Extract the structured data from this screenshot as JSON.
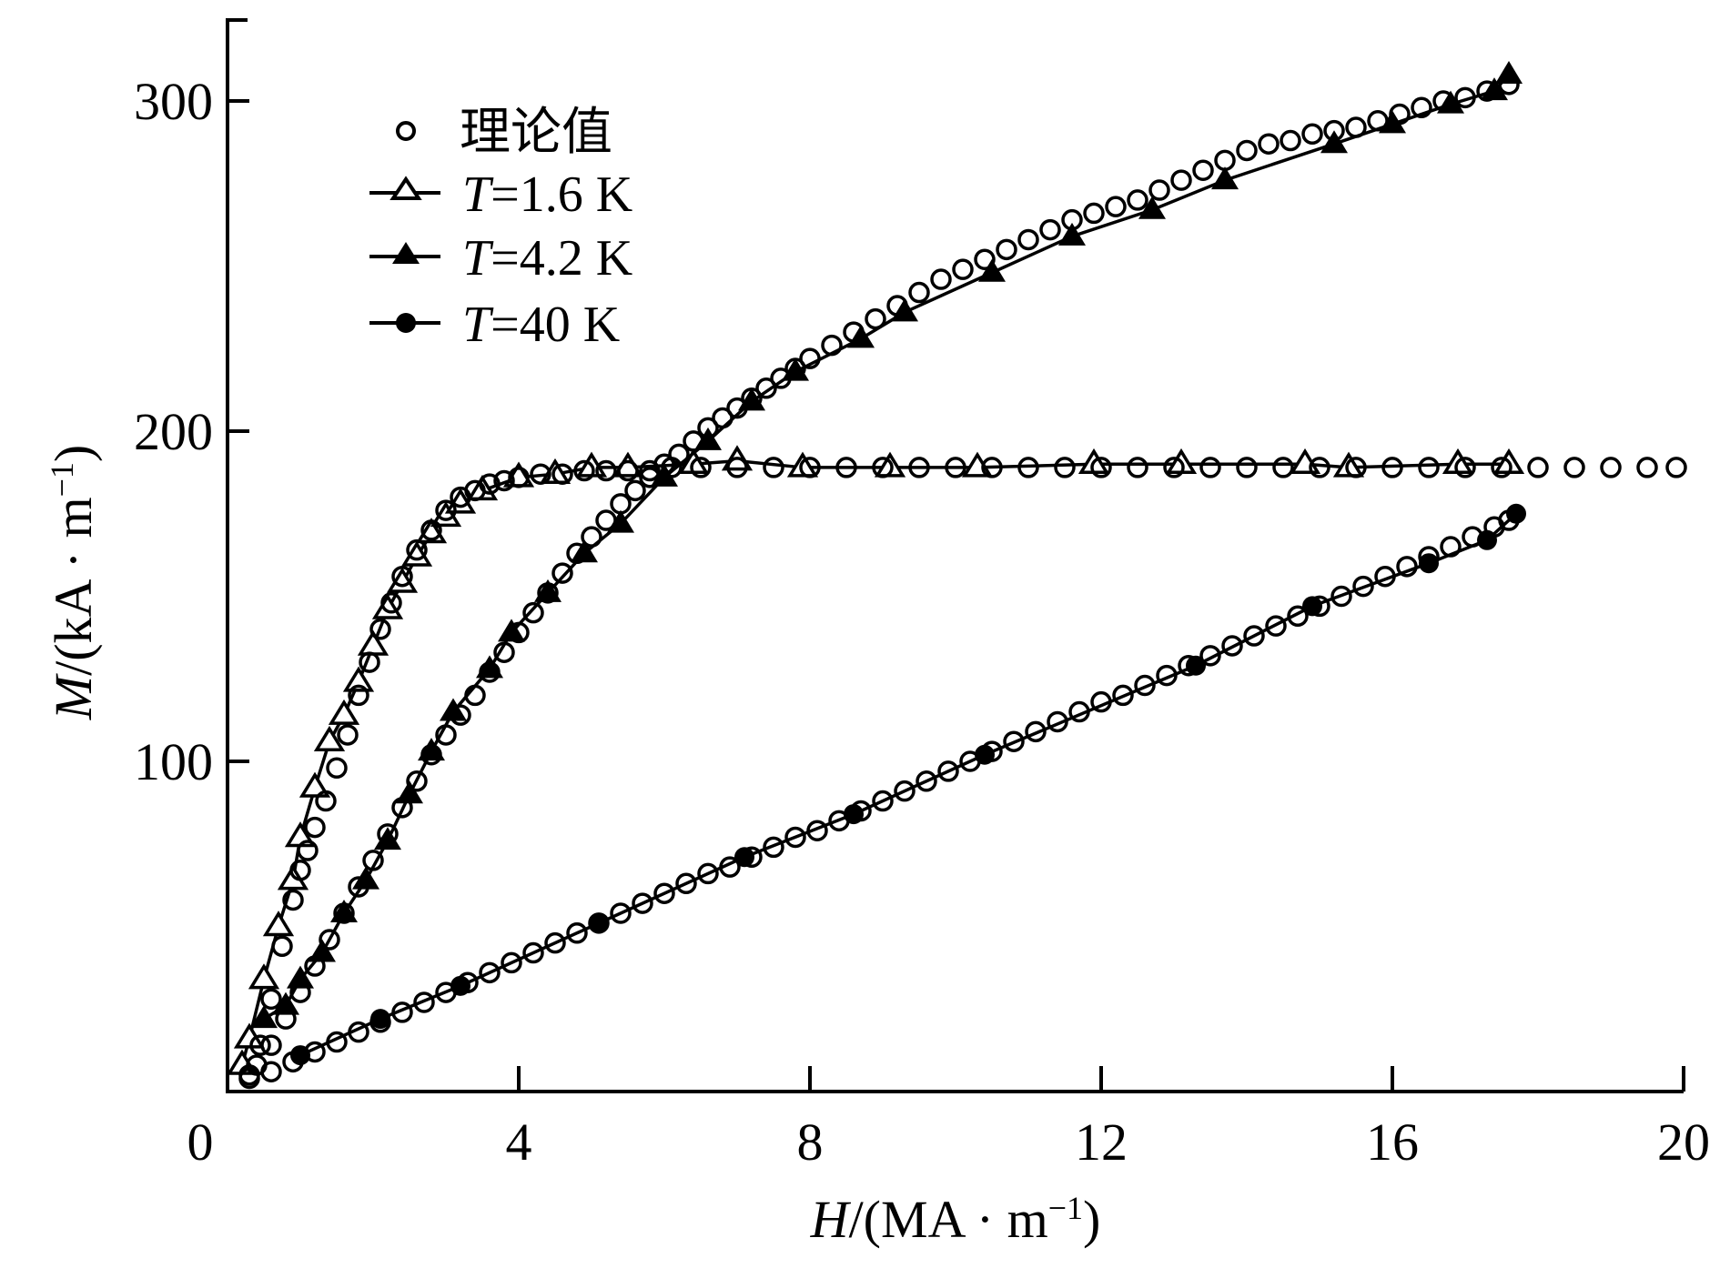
{
  "chart_data": {
    "type": "scatter",
    "title": "",
    "xlabel": "H/(MA·m⁻¹)",
    "ylabel": "M/(kA·m⁻¹)",
    "xlabel_parts": {
      "var": "H",
      "unit": "/(MA · m",
      "sup": "−1",
      "close": ")"
    },
    "ylabel_parts": {
      "var": "M",
      "unit": "/(kA · m",
      "sup": "−1",
      "close": ")"
    },
    "xlim": [
      0,
      20
    ],
    "ylim": [
      0,
      325
    ],
    "x_ticks": [
      0,
      4,
      8,
      12,
      16,
      20
    ],
    "y_ticks": [
      100,
      200,
      300
    ],
    "grid": false,
    "legend_position": "upper-left",
    "legend": [
      {
        "label": "理论值",
        "marker": "open-circle",
        "line": false
      },
      {
        "label_var": "T",
        "label_rest": "=1.6 K",
        "marker": "open-triangle",
        "line": true
      },
      {
        "label_var": "T",
        "label_rest": "=4.2 K",
        "marker": "filled-triangle",
        "line": true
      },
      {
        "label_var": "T",
        "label_rest": "=40 K",
        "marker": "filled-circle",
        "line": true
      }
    ],
    "series": [
      {
        "name": "T=1.6 K",
        "marker": "open-triangle",
        "x": [
          0.2,
          0.3,
          0.5,
          0.7,
          0.9,
          1.0,
          1.2,
          1.4,
          1.6,
          1.8,
          2.0,
          2.2,
          2.4,
          2.6,
          2.8,
          3.0,
          3.2,
          3.5,
          4.0,
          4.5,
          5.0,
          5.5,
          6.4,
          7.0,
          7.9,
          9.1,
          10.3,
          11.9,
          13.1,
          14.8,
          15.4,
          16.9,
          17.6
        ],
        "y": [
          8,
          16,
          34,
          50,
          64,
          77,
          92,
          106,
          114,
          124,
          135,
          146,
          154,
          162,
          169,
          174,
          178,
          182,
          186,
          187,
          189,
          189,
          190,
          191,
          189,
          189,
          189,
          190,
          190,
          190,
          189,
          190,
          190
        ]
      },
      {
        "name": "T=4.2 K",
        "marker": "filled-triangle",
        "x": [
          0.5,
          0.8,
          1.0,
          1.3,
          1.6,
          1.9,
          2.2,
          2.5,
          2.8,
          3.1,
          3.6,
          3.9,
          4.4,
          4.9,
          5.4,
          6.0,
          6.6,
          7.2,
          7.8,
          8.7,
          9.3,
          10.5,
          11.6,
          12.7,
          13.7,
          15.2,
          16.0,
          16.8,
          17.4,
          17.6
        ],
        "y": [
          22,
          26,
          34,
          42,
          54,
          64,
          76,
          90,
          103,
          115,
          128,
          139,
          151,
          163,
          172,
          186,
          197,
          209,
          218,
          228,
          236,
          248,
          259,
          267,
          276,
          287,
          293,
          299,
          303,
          308
        ]
      },
      {
        "name": "T=40 K",
        "marker": "filled-circle",
        "x": [
          1.0,
          2.1,
          3.2,
          5.1,
          7.1,
          8.6,
          10.4,
          13.3,
          14.9,
          16.5,
          17.3,
          17.7
        ],
        "y": [
          11,
          22,
          32,
          51,
          71,
          84,
          102,
          129,
          147,
          160,
          167,
          175
        ]
      },
      {
        "name": "理论值 (1.6 K)",
        "marker": "open-circle",
        "x": [
          0.3,
          0.45,
          0.6,
          0.75,
          0.9,
          1.0,
          1.1,
          1.2,
          1.35,
          1.5,
          1.65,
          1.8,
          1.95,
          2.1,
          2.25,
          2.4,
          2.6,
          2.8,
          3.0,
          3.2,
          3.4,
          3.6,
          3.8,
          4.0,
          4.3,
          4.6,
          4.9,
          5.2,
          5.5,
          5.8,
          6.1,
          6.5,
          7.0,
          7.5,
          8.0,
          8.5,
          9.0,
          9.5,
          10.0,
          10.5,
          11.0,
          11.5,
          12.0,
          12.5,
          13.0,
          13.5,
          14.0,
          14.5,
          15.0,
          15.5,
          16.0,
          16.5,
          17.0,
          17.5,
          18.0,
          18.5,
          19.0,
          19.5,
          19.9
        ],
        "y": [
          5,
          14,
          28,
          44,
          58,
          67,
          73,
          80,
          88,
          98,
          108,
          120,
          130,
          140,
          148,
          156,
          164,
          170,
          176,
          180,
          182,
          184,
          185,
          186,
          187,
          187,
          188,
          188,
          188,
          188,
          189,
          189,
          189,
          189,
          189,
          189,
          189,
          189,
          189,
          189,
          189,
          189,
          189,
          189,
          189,
          189,
          189,
          189,
          189,
          189,
          189,
          189,
          189,
          189,
          189,
          189,
          189,
          189,
          189
        ]
      },
      {
        "name": "理论值 (4.2 K)",
        "marker": "open-circle",
        "x": [
          0.4,
          0.6,
          0.8,
          1.0,
          1.2,
          1.4,
          1.6,
          1.8,
          2.0,
          2.2,
          2.4,
          2.6,
          2.8,
          3.0,
          3.2,
          3.4,
          3.6,
          3.8,
          4.0,
          4.2,
          4.4,
          4.6,
          4.8,
          5.0,
          5.2,
          5.4,
          5.6,
          5.8,
          6.0,
          6.2,
          6.4,
          6.6,
          6.8,
          7.0,
          7.2,
          7.4,
          7.6,
          7.8,
          8.0,
          8.3,
          8.6,
          8.9,
          9.2,
          9.5,
          9.8,
          10.1,
          10.4,
          10.7,
          11.0,
          11.3,
          11.6,
          11.9,
          12.2,
          12.5,
          12.8,
          13.1,
          13.4,
          13.7,
          14.0,
          14.3,
          14.6,
          14.9,
          15.2,
          15.5,
          15.8,
          16.1,
          16.4,
          16.7,
          17.0,
          17.3,
          17.6
        ],
        "y": [
          8,
          14,
          22,
          30,
          38,
          46,
          54,
          62,
          70,
          78,
          86,
          94,
          102,
          108,
          114,
          120,
          127,
          133,
          139,
          145,
          151,
          157,
          163,
          168,
          173,
          178,
          182,
          186,
          190,
          193,
          197,
          201,
          204,
          207,
          210,
          213,
          216,
          219,
          222,
          226,
          230,
          234,
          238,
          242,
          246,
          249,
          252,
          255,
          258,
          261,
          264,
          266,
          268,
          270,
          273,
          276,
          279,
          282,
          285,
          287,
          288,
          290,
          291,
          292,
          294,
          296,
          298,
          300,
          301,
          303,
          305
        ]
      },
      {
        "name": "理论值 (40 K)",
        "marker": "open-circle",
        "x": [
          0.3,
          0.6,
          0.9,
          1.2,
          1.5,
          1.8,
          2.1,
          2.4,
          2.7,
          3.0,
          3.3,
          3.6,
          3.9,
          4.2,
          4.5,
          4.8,
          5.1,
          5.4,
          5.7,
          6.0,
          6.3,
          6.6,
          6.9,
          7.2,
          7.5,
          7.8,
          8.1,
          8.4,
          8.7,
          9.0,
          9.3,
          9.6,
          9.9,
          10.2,
          10.5,
          10.8,
          11.1,
          11.4,
          11.7,
          12.0,
          12.3,
          12.6,
          12.9,
          13.2,
          13.5,
          13.8,
          14.1,
          14.4,
          14.7,
          15.0,
          15.3,
          15.6,
          15.9,
          16.2,
          16.5,
          16.8,
          17.1,
          17.4,
          17.6
        ],
        "y": [
          4,
          6,
          9,
          12,
          15,
          18,
          21,
          24,
          27,
          30,
          33,
          36,
          39,
          42,
          45,
          48,
          51,
          54,
          57,
          60,
          63,
          66,
          68,
          71,
          74,
          77,
          79,
          82,
          85,
          88,
          91,
          94,
          97,
          100,
          103,
          106,
          109,
          112,
          115,
          118,
          120,
          123,
          126,
          129,
          132,
          135,
          138,
          141,
          144,
          147,
          150,
          153,
          156,
          159,
          162,
          165,
          168,
          171,
          173
        ]
      }
    ]
  }
}
